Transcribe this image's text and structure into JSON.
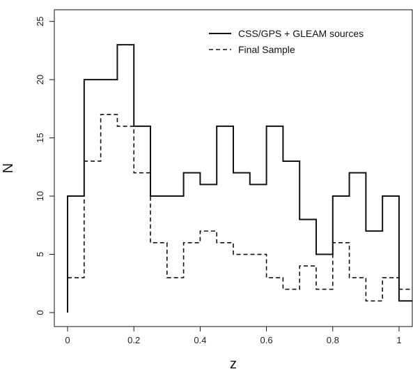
{
  "chart_data": {
    "type": "histogram-step",
    "title": "",
    "xlabel": "z",
    "ylabel": "N",
    "xlim": [
      -0.04,
      1.04
    ],
    "ylim": [
      -1.2,
      26
    ],
    "xticks": [
      0,
      0.2,
      0.4,
      0.6,
      0.8,
      1
    ],
    "yticks": [
      0,
      5,
      10,
      15,
      20,
      25
    ],
    "bin_edges": [
      0,
      0.05,
      0.1,
      0.15,
      0.2,
      0.25,
      0.3,
      0.35,
      0.4,
      0.45,
      0.5,
      0.55,
      0.6,
      0.65,
      0.7,
      0.75,
      0.8,
      0.85,
      0.9,
      0.95,
      1.0,
      1.05
    ],
    "legend_position": "top-right",
    "grid": false,
    "series": [
      {
        "name": "CSS/GPS + GLEAM sources",
        "style": "solid",
        "color": "#111111",
        "values": [
          10,
          20,
          20,
          23,
          16,
          10,
          10,
          12,
          11,
          16,
          12,
          11,
          16,
          13,
          8,
          5,
          10,
          12,
          7,
          10,
          1
        ]
      },
      {
        "name": "Final Sample",
        "style": "dashed",
        "color": "#111111",
        "values": [
          3,
          13,
          17,
          16,
          12,
          6,
          3,
          6,
          7,
          6,
          5,
          5,
          3,
          2,
          4,
          2,
          6,
          3,
          1,
          3,
          2
        ]
      }
    ]
  }
}
